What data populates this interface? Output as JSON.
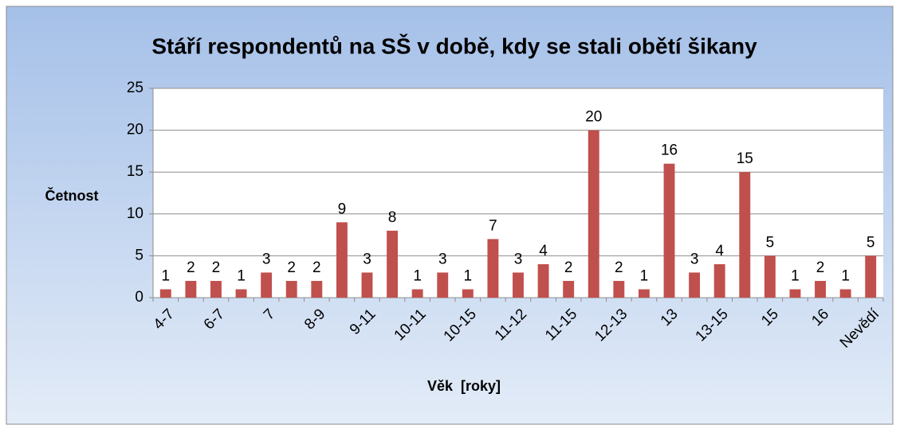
{
  "chart_data": {
    "type": "bar",
    "title": "Stáří respondentů na SŠ v době, kdy se stali obětí šikany",
    "y_label": "Četnost",
    "x_label": "Věk  [roky]",
    "categories": [
      "4-7",
      null,
      "6-7",
      null,
      "7",
      null,
      "8-9",
      null,
      "9-11",
      null,
      "10-11",
      null,
      "10-15",
      null,
      "11-12",
      null,
      "11-15",
      null,
      "12-13",
      null,
      "13",
      null,
      "13-15",
      null,
      "15",
      null,
      "16",
      null,
      "Nevědí"
    ],
    "values": [
      1,
      2,
      2,
      1,
      3,
      2,
      2,
      9,
      3,
      8,
      1,
      3,
      1,
      7,
      3,
      4,
      2,
      20,
      2,
      1,
      16,
      3,
      4,
      15,
      5,
      1,
      2,
      1,
      5
    ],
    "color": "#c0504d",
    "ylim": [
      0,
      25
    ],
    "yticks": [
      0,
      5,
      10,
      15,
      20,
      25
    ],
    "grid": true
  }
}
